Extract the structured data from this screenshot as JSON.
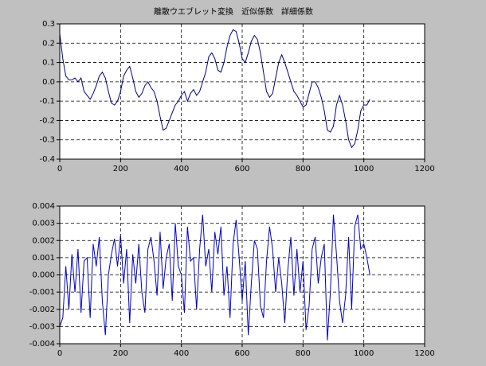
{
  "chart_data": [
    {
      "type": "line",
      "title": "離散ウエブレット変換　近似係数　詳細係数",
      "x": [
        0,
        10,
        20,
        30,
        40,
        50,
        60,
        70,
        80,
        90,
        100,
        110,
        120,
        130,
        140,
        150,
        160,
        170,
        180,
        190,
        200,
        210,
        220,
        230,
        240,
        250,
        260,
        270,
        280,
        290,
        300,
        310,
        320,
        330,
        340,
        350,
        360,
        370,
        380,
        390,
        400,
        410,
        420,
        430,
        440,
        450,
        460,
        470,
        480,
        490,
        500,
        510,
        520,
        530,
        540,
        550,
        560,
        570,
        580,
        590,
        600,
        610,
        620,
        630,
        640,
        650,
        660,
        670,
        680,
        690,
        700,
        710,
        720,
        730,
        740,
        750,
        760,
        770,
        780,
        790,
        800,
        810,
        820,
        830,
        840,
        850,
        860,
        870,
        880,
        890,
        900,
        910,
        920,
        930,
        940,
        950,
        960,
        970,
        980,
        990,
        1000,
        1010,
        1020
      ],
      "series": [
        {
          "color": "#000080",
          "values": [
            0.25,
            0.12,
            0.03,
            0.01,
            0.01,
            0.02,
            0.0,
            0.02,
            -0.05,
            -0.07,
            -0.09,
            -0.06,
            -0.02,
            0.03,
            0.05,
            0.02,
            -0.05,
            -0.11,
            -0.12,
            -0.1,
            -0.05,
            0.03,
            0.06,
            0.08,
            0.02,
            -0.05,
            -0.08,
            -0.06,
            -0.02,
            0.0,
            -0.03,
            -0.05,
            -0.1,
            -0.18,
            -0.25,
            -0.24,
            -0.2,
            -0.16,
            -0.12,
            -0.1,
            -0.07,
            -0.05,
            -0.1,
            -0.06,
            -0.04,
            -0.07,
            -0.05,
            0.0,
            0.05,
            0.13,
            0.15,
            0.12,
            0.06,
            0.05,
            0.1,
            0.18,
            0.24,
            0.27,
            0.26,
            0.2,
            0.12,
            0.1,
            0.15,
            0.21,
            0.24,
            0.22,
            0.15,
            0.05,
            -0.05,
            -0.08,
            -0.06,
            0.02,
            0.1,
            0.14,
            0.1,
            0.05,
            0.0,
            -0.05,
            -0.07,
            -0.1,
            -0.13,
            -0.12,
            -0.06,
            0.0,
            0.0,
            -0.03,
            -0.08,
            -0.15,
            -0.25,
            -0.26,
            -0.23,
            -0.12,
            -0.07,
            -0.12,
            -0.2,
            -0.3,
            -0.34,
            -0.32,
            -0.25,
            -0.15,
            -0.12,
            -0.12,
            -0.09
          ]
        }
      ],
      "xlim": [
        0,
        1200
      ],
      "xticks": [
        0,
        200,
        400,
        600,
        800,
        1000,
        1200
      ],
      "ylim": [
        -0.4,
        0.3
      ],
      "yticks": [
        -0.4,
        -0.3,
        -0.2,
        -0.1,
        {
          "value": 0,
          "label": "0.0"
        },
        0.1,
        0.2,
        0.3
      ],
      "grid": true
    },
    {
      "type": "line",
      "x": [
        0,
        10,
        20,
        30,
        40,
        50,
        60,
        70,
        80,
        90,
        100,
        110,
        120,
        130,
        140,
        150,
        160,
        170,
        180,
        190,
        200,
        210,
        220,
        230,
        240,
        250,
        260,
        270,
        280,
        290,
        300,
        310,
        320,
        330,
        340,
        350,
        360,
        370,
        380,
        390,
        400,
        410,
        420,
        430,
        440,
        450,
        460,
        470,
        480,
        490,
        500,
        510,
        520,
        530,
        540,
        550,
        560,
        570,
        580,
        590,
        600,
        610,
        620,
        630,
        640,
        650,
        660,
        670,
        680,
        690,
        700,
        710,
        720,
        730,
        740,
        750,
        760,
        770,
        780,
        790,
        800,
        810,
        820,
        830,
        840,
        850,
        860,
        870,
        880,
        890,
        900,
        910,
        920,
        930,
        940,
        950,
        960,
        970,
        980,
        990,
        1000,
        1010,
        1020
      ],
      "series": [
        {
          "color": "#0000c8",
          "values": [
            -0.003,
            -0.0025,
            0.0005,
            -0.002,
            0.0012,
            -0.001,
            0.0015,
            -0.0022,
            0.0008,
            0.001,
            -0.0025,
            0.0018,
            0.0005,
            0.0022,
            -0.0015,
            -0.0035,
            0.0,
            0.0012,
            0.0021,
            0.0005,
            0.0023,
            -0.0005,
            0.0015,
            -0.0028,
            0.0012,
            -0.0005,
            0.0018,
            -0.001,
            -0.0022,
            0.0015,
            0.0022,
            0.0008,
            -0.0012,
            0.0025,
            -0.0008,
            0.001,
            0.0018,
            -0.0015,
            0.003,
            0.0005,
            0.0,
            -0.0022,
            0.0028,
            0.0008,
            0.001,
            -0.002,
            0.0015,
            0.0035,
            0.0005,
            0.0015,
            -0.001,
            0.0025,
            0.0012,
            0.0028,
            -0.0012,
            0.0005,
            -0.0025,
            0.0018,
            0.0032,
            0.001,
            -0.0015,
            0.0008,
            -0.0035,
            -0.0005,
            0.002,
            0.0015,
            -0.0018,
            -0.0025,
            0.0008,
            0.0028,
            0.0015,
            -0.001,
            0.001,
            -0.0005,
            -0.0028,
            0.0003,
            0.0022,
            -0.0012,
            0.0015,
            -0.001,
            0.0008,
            -0.0032,
            -0.0018,
            0.0015,
            0.0022,
            -0.0005,
            0.001,
            0.0018,
            -0.0038,
            -0.001,
            0.0035,
            0.0012,
            -0.0015,
            -0.0028,
            -0.0012,
            0.0022,
            -0.002,
            0.0028,
            0.0035,
            0.0015,
            0.0018,
            0.001,
            0.0
          ]
        }
      ],
      "xlim": [
        0,
        1200
      ],
      "xticks": [
        0,
        200,
        400,
        600,
        800,
        1000,
        1200
      ],
      "ylim": [
        -0.004,
        0.004
      ],
      "yticks": [
        -0.004,
        -0.003,
        -0.002,
        -0.001,
        {
          "value": 0,
          "label": "0.000"
        },
        0.001,
        0.002,
        0.003,
        0.004
      ],
      "grid": true
    }
  ]
}
